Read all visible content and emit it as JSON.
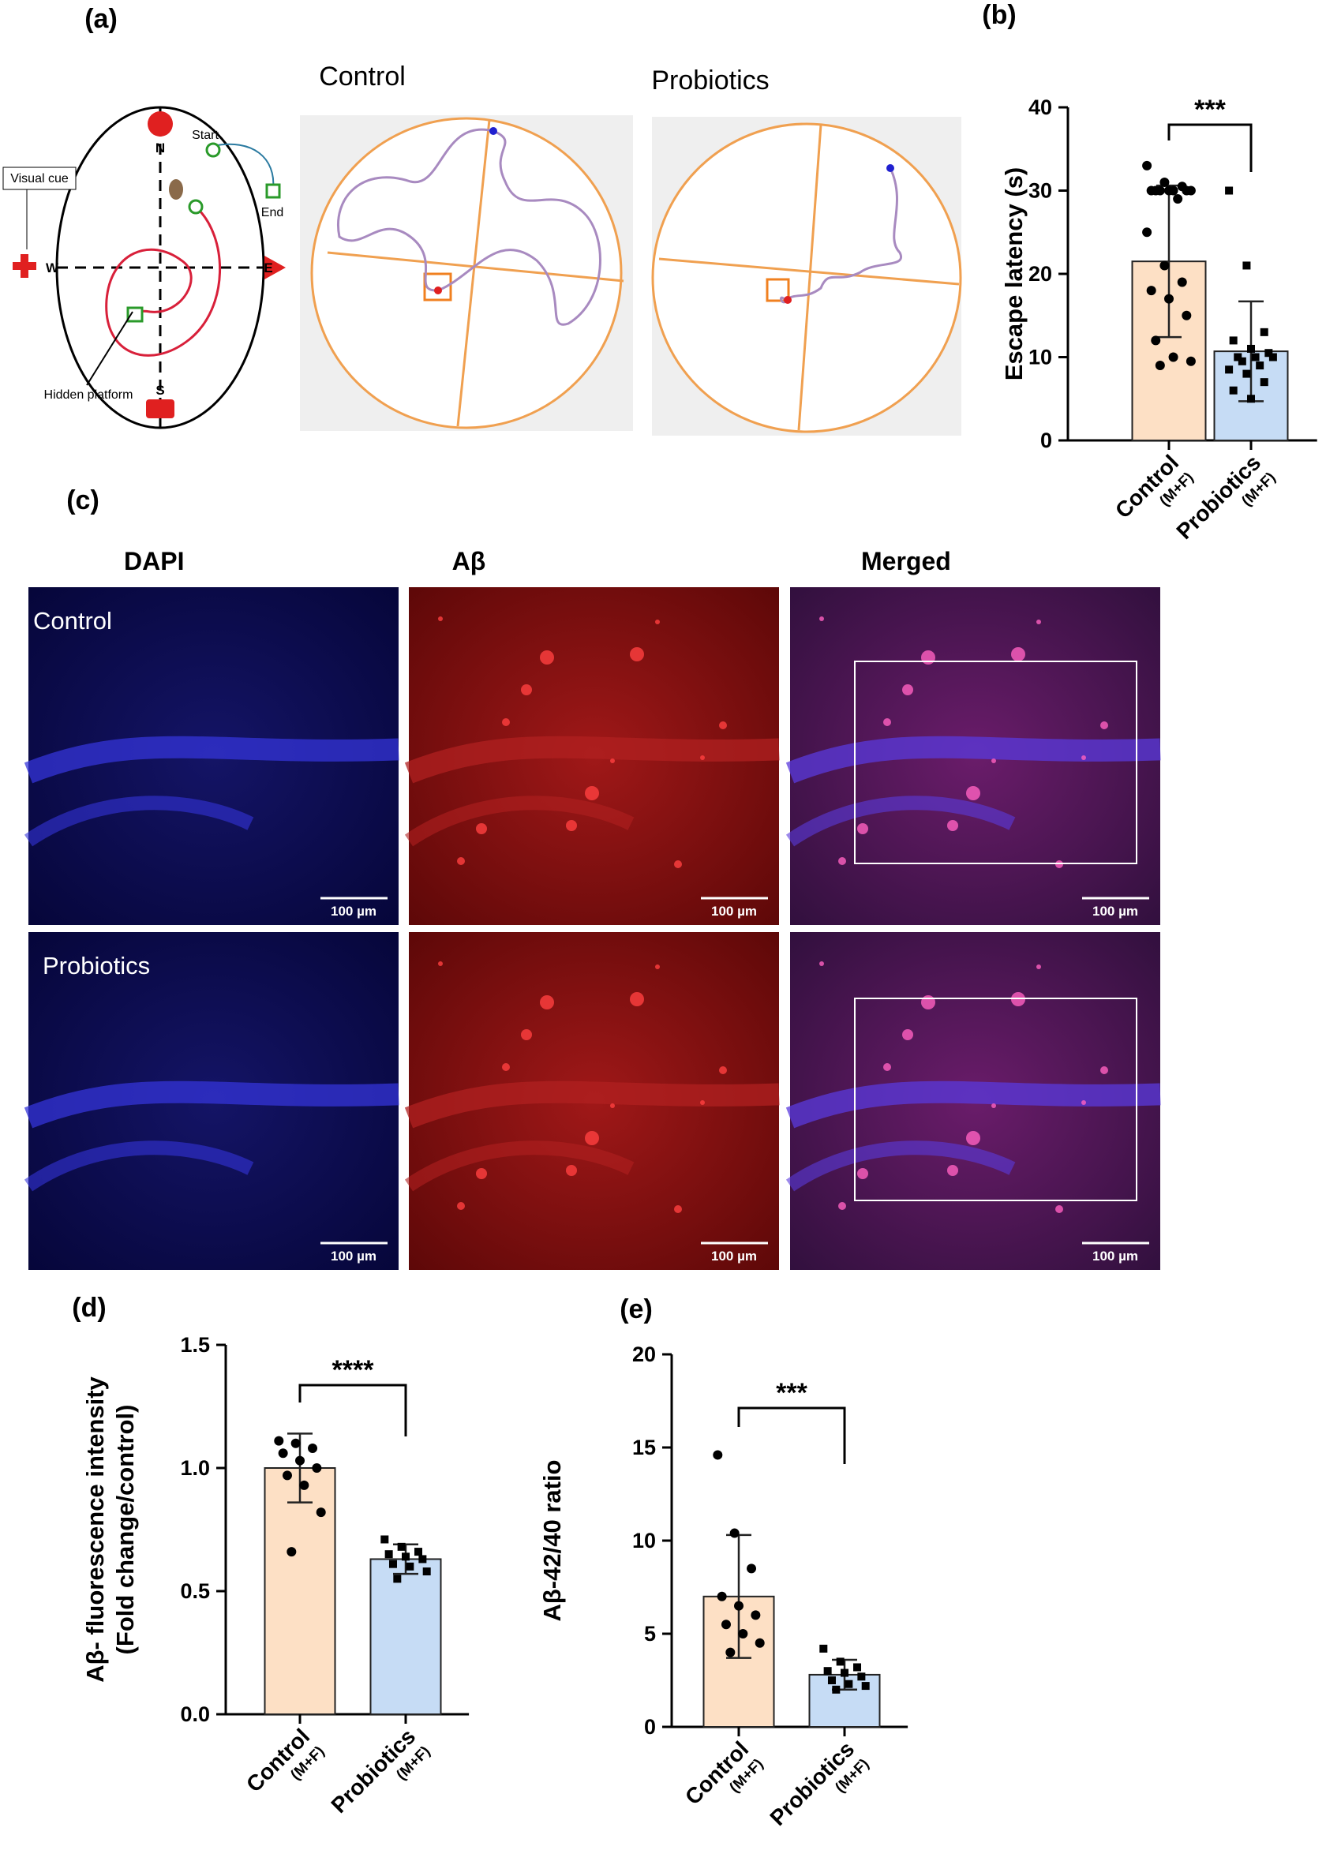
{
  "chart_data": [
    {
      "type": "bar",
      "panel": "(b)",
      "ylabel": [
        "Escape latency (s)"
      ],
      "significance": "***",
      "categories": [
        "Control",
        "Probiotics"
      ],
      "category_sublabels": [
        "(M+F)",
        "(M+F)"
      ],
      "values": [
        21.5,
        10.7
      ],
      "errors": [
        9.1,
        6.0
      ],
      "colors": [
        "#fde0c5",
        "#c6dcf5"
      ],
      "point_shapes": [
        "circle",
        "square"
      ],
      "points": [
        [
          33,
          31,
          30.5,
          30,
          30,
          30,
          30,
          30,
          30,
          30,
          29,
          25,
          21,
          19,
          18,
          17,
          15,
          12,
          10,
          9.5,
          9
        ],
        [
          30,
          21,
          13,
          12,
          11,
          10.5,
          10,
          10,
          10,
          9.5,
          9,
          8.5,
          8,
          7,
          6,
          5
        ]
      ],
      "ylim": [
        0,
        40
      ],
      "yticks": [
        0,
        10,
        20,
        30,
        40
      ]
    },
    {
      "type": "bar",
      "panel": "(d)",
      "ylabel": [
        "Aβ- fluorescence intensity",
        "(Fold change/control)"
      ],
      "significance": "****",
      "categories": [
        "Control",
        "Probiotics"
      ],
      "category_sublabels": [
        "(M+F)",
        "(M+F)"
      ],
      "values": [
        1.0,
        0.63
      ],
      "errors": [
        0.14,
        0.06
      ],
      "colors": [
        "#fde0c5",
        "#c6dcf5"
      ],
      "point_shapes": [
        "circle",
        "square"
      ],
      "points": [
        [
          1.11,
          1.1,
          1.08,
          1.06,
          1.03,
          1.0,
          0.97,
          0.93,
          0.82,
          0.66
        ],
        [
          0.71,
          0.68,
          0.66,
          0.65,
          0.64,
          0.63,
          0.61,
          0.6,
          0.58,
          0.55
        ]
      ],
      "ylim": [
        0,
        1.5
      ],
      "yticks": [
        {
          "value": 0,
          "label": "0.0"
        },
        0.5,
        {
          "value": 1,
          "label": "1.0"
        },
        1.5
      ]
    },
    {
      "type": "bar",
      "panel": "(e)",
      "ylabel": [
        "Aβ-42/40 ratio"
      ],
      "significance": "***",
      "categories": [
        "Control",
        "Probiotics"
      ],
      "category_sublabels": [
        "(M+F)",
        "(M+F)"
      ],
      "values": [
        7.0,
        2.8
      ],
      "errors": [
        3.3,
        0.8
      ],
      "colors": [
        "#fde0c5",
        "#c6dcf5"
      ],
      "point_shapes": [
        "circle",
        "square"
      ],
      "points": [
        [
          14.6,
          10.4,
          8.5,
          7,
          6.5,
          6,
          5.5,
          5,
          4.5,
          4
        ],
        [
          4.2,
          3.5,
          3.2,
          3,
          2.9,
          2.7,
          2.5,
          2.3,
          2.2,
          2.0
        ]
      ],
      "ylim": [
        0,
        20
      ],
      "yticks": [
        0,
        5,
        10,
        15,
        20
      ]
    }
  ],
  "panels": {
    "a": {
      "label": "(a)",
      "maze": {
        "north": "N",
        "south": "S",
        "east": "E",
        "west": "W",
        "visual_cue": "Visual cue",
        "start": "Start",
        "end": "End",
        "platform": "Hidden platform"
      },
      "tracks": [
        "Control",
        "Probiotics"
      ]
    },
    "c": {
      "label": "(c)",
      "columns": [
        "DAPI",
        "Aβ",
        "Merged"
      ],
      "rows": [
        "Control",
        "Probiotics"
      ],
      "scale_bar": "100 µm"
    }
  }
}
